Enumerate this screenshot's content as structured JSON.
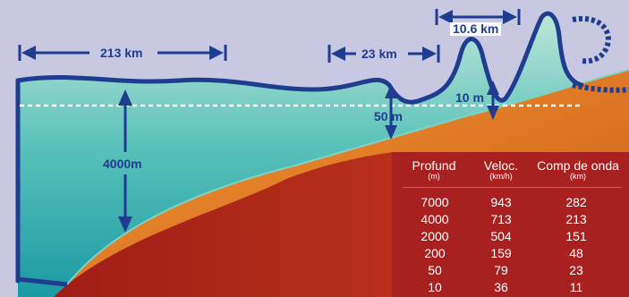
{
  "colors": {
    "background": "#c9c8e3",
    "wave_line": "#1f3d8f",
    "ocean_top": "#bfe6d9",
    "ocean_bottom": "#1aa3a8",
    "seafloor_orange": "#e68a2a",
    "seafloor_red": "#a52018",
    "table_bg": "#a82020",
    "waterline": "#ffffff"
  },
  "labels": {
    "wavelength_deep": "213 km",
    "wavelength_mid": "23 km",
    "wavelength_shallow": "10.6 km",
    "ocean_depth": "4000m",
    "depth_50": "50 m",
    "depth_10": "10 m"
  },
  "table": {
    "headers": [
      {
        "title": "Profund",
        "unit": "(m)"
      },
      {
        "title": "Veloc.",
        "unit": "(km/h)"
      },
      {
        "title": "Comp de onda",
        "unit": "(km)"
      }
    ],
    "rows": [
      [
        "7000",
        "943",
        "282"
      ],
      [
        "4000",
        "713",
        "213"
      ],
      [
        "2000",
        "504",
        "151"
      ],
      [
        "200",
        "159",
        "48"
      ],
      [
        "50",
        "79",
        "23"
      ],
      [
        "10",
        "36",
        "11"
      ]
    ]
  }
}
